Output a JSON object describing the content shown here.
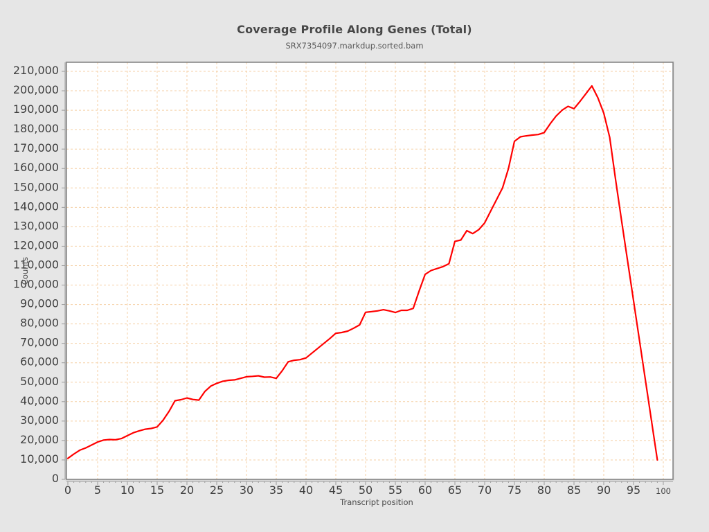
{
  "header": {
    "title": "Coverage Profile Along Genes (Total)",
    "subtitle": "SRX7354097.markdup.sorted.bam"
  },
  "colors": {
    "background": "#e6e6e6",
    "plot_background": "#ffffff",
    "grid": "#f5cfa4",
    "frame": "#7a7a7a",
    "frame_highlight": "#cccccc",
    "axis": "#9a9a9a",
    "tick_label": "#3f3f3f",
    "axis_title": "#4a4a4a",
    "title": "#474747",
    "subtitle": "#5a5a5a",
    "series_line": "#ff0000"
  },
  "chart_data": {
    "type": "line",
    "title": "Coverage Profile Along Genes (Total)",
    "subtitle": "SRX7354097.markdup.sorted.bam",
    "xlabel": "Transcript position",
    "ylabel": "Counts",
    "xlim": [
      0,
      100
    ],
    "ylim": [
      0,
      210000
    ],
    "x_major_ticks_step": 5,
    "x_minor_ticks_step": 1,
    "y_major_ticks_step": 10000,
    "grid": true,
    "grid_style": "dashed",
    "legend": "none",
    "series": [
      {
        "name": "coverage",
        "color": "#ff0000",
        "x_start": 0,
        "x_step": 1,
        "values": [
          10800,
          13000,
          15000,
          16200,
          17700,
          19200,
          20200,
          20500,
          20400,
          21000,
          22500,
          24000,
          25000,
          25800,
          26200,
          27000,
          30500,
          35000,
          40500,
          41000,
          41900,
          41100,
          40800,
          45200,
          48000,
          49400,
          50500,
          51000,
          51200,
          52000,
          52800,
          53000,
          53300,
          52600,
          52700,
          52000,
          55900,
          60500,
          61300,
          61600,
          62500,
          65000,
          67500,
          70000,
          72500,
          75200,
          75600,
          76300,
          77800,
          79500,
          86000,
          86300,
          86700,
          87300,
          86700,
          85900,
          87000,
          87000,
          88000,
          97000,
          105500,
          107500,
          108500,
          109500,
          111000,
          122500,
          123200,
          128000,
          126500,
          128500,
          132000,
          138000,
          144000,
          150000,
          160000,
          174000,
          176300,
          176800,
          177200,
          177500,
          178500,
          183000,
          187000,
          190000,
          192000,
          190800,
          194500,
          198500,
          202500,
          196500,
          188500,
          176000,
          154000,
          133000,
          112500,
          92000,
          71500,
          51000,
          30500,
          10000
        ]
      }
    ]
  }
}
